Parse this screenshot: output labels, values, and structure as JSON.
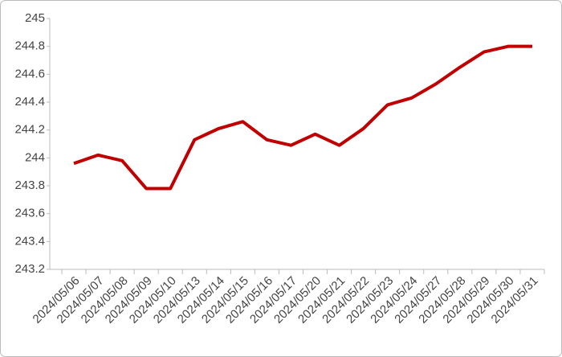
{
  "chart_data": {
    "type": "line",
    "categories": [
      "2024/05/06",
      "2024/05/07",
      "2024/05/08",
      "2024/05/09",
      "2024/05/10",
      "2024/05/13",
      "2024/05/14",
      "2024/05/15",
      "2024/05/16",
      "2024/05/17",
      "2024/05/20",
      "2024/05/21",
      "2024/05/22",
      "2024/05/23",
      "2024/05/24",
      "2024/05/27",
      "2024/05/28",
      "2024/05/29",
      "2024/05/30",
      "2024/05/31"
    ],
    "values": [
      243.96,
      244.02,
      243.98,
      243.78,
      243.78,
      244.13,
      244.21,
      244.26,
      244.13,
      244.09,
      244.17,
      244.09,
      244.21,
      244.38,
      244.43,
      244.53,
      244.65,
      244.76,
      244.8,
      244.8
    ],
    "color": "#c00000",
    "ylim": [
      243.2,
      245
    ],
    "yticks": [
      243.2,
      243.4,
      243.6,
      243.8,
      244,
      244.2,
      244.4,
      244.6,
      244.8,
      245
    ],
    "grid": false
  }
}
